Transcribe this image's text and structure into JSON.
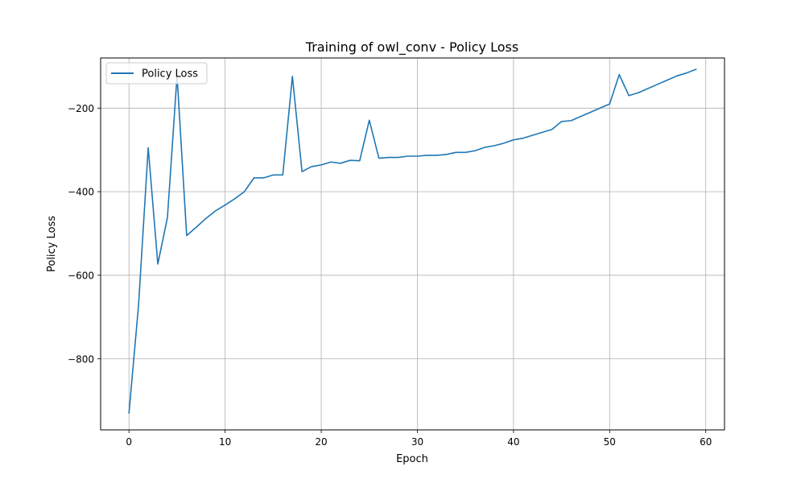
{
  "chart_data": {
    "type": "line",
    "title": "Training of owl_conv - Policy Loss",
    "xlabel": "Epoch",
    "ylabel": "Policy Loss",
    "xlim": [
      -2.95,
      61.95
    ],
    "ylim": [
      -970,
      -80
    ],
    "xticks": [
      0,
      10,
      20,
      30,
      40,
      50,
      60
    ],
    "xtick_labels": [
      "0",
      "10",
      "20",
      "30",
      "40",
      "50",
      "60"
    ],
    "yticks": [
      -800,
      -600,
      -400,
      -200
    ],
    "ytick_labels": [
      "−800",
      "−600",
      "−400",
      "−200"
    ],
    "grid": true,
    "legend_position": "top-left",
    "line_color": "#1f77b4",
    "series": [
      {
        "name": "Policy Loss",
        "x": [
          0,
          1,
          2,
          3,
          4,
          5,
          6,
          7,
          8,
          9,
          10,
          11,
          12,
          13,
          14,
          15,
          16,
          17,
          18,
          19,
          20,
          21,
          22,
          23,
          24,
          25,
          26,
          27,
          28,
          29,
          30,
          31,
          32,
          33,
          34,
          35,
          36,
          37,
          38,
          39,
          40,
          41,
          42,
          43,
          44,
          45,
          46,
          47,
          48,
          49,
          50,
          51,
          52,
          53,
          54,
          55,
          56,
          57,
          58,
          59
        ],
        "y": [
          -930,
          -670,
          -295,
          -573,
          -462,
          -122,
          -505,
          -485,
          -464,
          -446,
          -432,
          -417,
          -400,
          -367,
          -367,
          -360,
          -360,
          -124,
          -352,
          -340,
          -336,
          -329,
          -332,
          -325,
          -326,
          -229,
          -320,
          -318,
          -318,
          -315,
          -315,
          -313,
          -313,
          -311,
          -306,
          -306,
          -302,
          -294,
          -290,
          -284,
          -276,
          -272,
          -265,
          -258,
          -251,
          -232,
          -230,
          -220,
          -210,
          -200,
          -190,
          -120,
          -170,
          -163,
          -153,
          -143,
          -133,
          -123,
          -116,
          -107
        ]
      }
    ]
  }
}
